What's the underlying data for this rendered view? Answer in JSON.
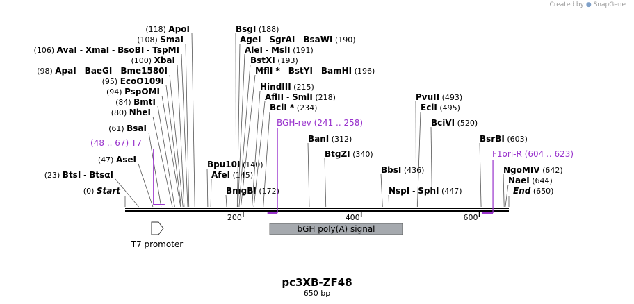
{
  "watermark": {
    "prefix": "Created by",
    "brand": "SnapGene"
  },
  "plasmid": {
    "name": "pc3XB-ZF48",
    "length_label": "650 bp",
    "length_bp": 650
  },
  "axis": {
    "start": 1,
    "end": 650,
    "ticks": [
      200,
      400,
      600
    ]
  },
  "sites": [
    {
      "pos": 0,
      "labels": [
        {
          "text": "(0)"
        },
        {
          "text": "Start",
          "style": "italic"
        }
      ]
    },
    {
      "pos": 23,
      "labels": [
        {
          "text": "(23)"
        },
        {
          "text": "BtsI",
          "style": "bold"
        },
        {
          "text": " - "
        },
        {
          "text": "BtsαI",
          "style": "bold"
        }
      ]
    },
    {
      "pos": 47,
      "labels": [
        {
          "text": "(47)"
        },
        {
          "text": "AseI",
          "style": "bold"
        }
      ]
    },
    {
      "pos": 61,
      "labels": [
        {
          "text": "(61)"
        },
        {
          "text": "BsaI",
          "style": "bold"
        }
      ]
    },
    {
      "pos": 80,
      "labels": [
        {
          "text": "(80)"
        },
        {
          "text": "NheI",
          "style": "bold"
        }
      ]
    },
    {
      "pos": 84,
      "labels": [
        {
          "text": "(84)"
        },
        {
          "text": "BmtI",
          "style": "bold"
        }
      ]
    },
    {
      "pos": 94,
      "labels": [
        {
          "text": "(94)"
        },
        {
          "text": "PspOMI",
          "style": "bold"
        }
      ]
    },
    {
      "pos": 95,
      "labels": [
        {
          "text": "(95)"
        },
        {
          "text": "EcoO109I",
          "style": "bold"
        }
      ]
    },
    {
      "pos": 98,
      "labels": [
        {
          "text": "(98)"
        },
        {
          "text": "ApaI",
          "style": "bold"
        },
        {
          "text": " - "
        },
        {
          "text": "BaeGI",
          "style": "bold"
        },
        {
          "text": " - "
        },
        {
          "text": "Bme1580I",
          "style": "bold"
        }
      ]
    },
    {
      "pos": 100,
      "labels": [
        {
          "text": "(100)"
        },
        {
          "text": "XbaI",
          "style": "bold"
        }
      ]
    },
    {
      "pos": 106,
      "labels": [
        {
          "text": "(106)"
        },
        {
          "text": "AvaI",
          "style": "bold"
        },
        {
          "text": " - "
        },
        {
          "text": "XmaI",
          "style": "bold"
        },
        {
          "text": " - "
        },
        {
          "text": "BsoBI",
          "style": "bold"
        },
        {
          "text": " - "
        },
        {
          "text": "TspMI",
          "style": "bold"
        }
      ]
    },
    {
      "pos": 108,
      "labels": [
        {
          "text": "(108)"
        },
        {
          "text": "SmaI",
          "style": "bold"
        }
      ]
    },
    {
      "pos": 118,
      "labels": [
        {
          "text": "(118)"
        },
        {
          "text": "ApoI",
          "style": "bold"
        }
      ]
    },
    {
      "pos": 140,
      "labels": [
        {
          "text": "Bpu10I",
          "style": "bold"
        },
        {
          "text": "(140)"
        }
      ]
    },
    {
      "pos": 145,
      "labels": [
        {
          "text": "AfeI",
          "style": "bold"
        },
        {
          "text": "(145)"
        }
      ]
    },
    {
      "pos": 172,
      "labels": [
        {
          "text": "BmgBI",
          "style": "bold"
        },
        {
          "text": "(172)"
        }
      ]
    },
    {
      "pos": 188,
      "labels": [
        {
          "text": "BsgI",
          "style": "bold"
        },
        {
          "text": "(188)"
        }
      ]
    },
    {
      "pos": 190,
      "labels": [
        {
          "text": "AgeI",
          "style": "bold"
        },
        {
          "text": " - "
        },
        {
          "text": "SgrAI",
          "style": "bold"
        },
        {
          "text": " - "
        },
        {
          "text": "BsaWI",
          "style": "bold"
        },
        {
          "text": "(190)"
        }
      ]
    },
    {
      "pos": 191,
      "labels": [
        {
          "text": "AleI",
          "style": "bold"
        },
        {
          "text": " - "
        },
        {
          "text": "MslI",
          "style": "bold"
        },
        {
          "text": "(191)"
        }
      ]
    },
    {
      "pos": 193,
      "labels": [
        {
          "text": "BstXI",
          "style": "bold"
        },
        {
          "text": "(193)"
        }
      ]
    },
    {
      "pos": 196,
      "labels": [
        {
          "text": "MflI *",
          "style": "bold"
        },
        {
          "text": " - "
        },
        {
          "text": "BstYI",
          "style": "bold"
        },
        {
          "text": " - "
        },
        {
          "text": "BamHI",
          "style": "bold"
        },
        {
          "text": "(196)"
        }
      ]
    },
    {
      "pos": 215,
      "labels": [
        {
          "text": "HindIII",
          "style": "bold"
        },
        {
          "text": "(215)"
        }
      ]
    },
    {
      "pos": 218,
      "labels": [
        {
          "text": "AflII",
          "style": "bold"
        },
        {
          "text": " - "
        },
        {
          "text": "SmlI",
          "style": "bold"
        },
        {
          "text": "(218)"
        }
      ]
    },
    {
      "pos": 234,
      "labels": [
        {
          "text": "BclI *",
          "style": "bold"
        },
        {
          "text": "(234)"
        }
      ]
    },
    {
      "pos": 312,
      "labels": [
        {
          "text": "BanI",
          "style": "bold"
        },
        {
          "text": "(312)"
        }
      ]
    },
    {
      "pos": 340,
      "labels": [
        {
          "text": "BtgZI",
          "style": "bold"
        },
        {
          "text": "(340)"
        }
      ]
    },
    {
      "pos": 436,
      "labels": [
        {
          "text": "BbsI",
          "style": "bold"
        },
        {
          "text": "(436)"
        }
      ]
    },
    {
      "pos": 447,
      "labels": [
        {
          "text": "NspI",
          "style": "bold"
        },
        {
          "text": " - "
        },
        {
          "text": "SphI",
          "style": "bold"
        },
        {
          "text": "(447)"
        }
      ]
    },
    {
      "pos": 493,
      "labels": [
        {
          "text": "PvuII",
          "style": "bold"
        },
        {
          "text": "(493)"
        }
      ]
    },
    {
      "pos": 495,
      "labels": [
        {
          "text": "EciI",
          "style": "bold"
        },
        {
          "text": "(495)"
        }
      ]
    },
    {
      "pos": 520,
      "labels": [
        {
          "text": "BciVI",
          "style": "bold"
        },
        {
          "text": "(520)"
        }
      ]
    },
    {
      "pos": 603,
      "labels": [
        {
          "text": "BsrBI",
          "style": "bold"
        },
        {
          "text": "(603)"
        }
      ]
    },
    {
      "pos": 642,
      "labels": [
        {
          "text": "NgoMIV",
          "style": "bold"
        },
        {
          "text": "(642)"
        }
      ]
    },
    {
      "pos": 644,
      "labels": [
        {
          "text": "NaeI",
          "style": "bold"
        },
        {
          "text": "(644)"
        }
      ]
    },
    {
      "pos": 650,
      "labels": [
        {
          "text": "End",
          "style": "italic"
        },
        {
          "text": "(650)"
        }
      ]
    }
  ],
  "primers": [
    {
      "name": "T7",
      "range": "(48 .. 67)",
      "start": 48,
      "end": 67,
      "strand": "forward"
    },
    {
      "name": "BGH-rev",
      "range": "(241 .. 258)",
      "start": 241,
      "end": 258,
      "strand": "reverse"
    },
    {
      "name": "F1ori-R",
      "range": "(604 .. 623)",
      "start": 604,
      "end": 623,
      "strand": "reverse"
    }
  ],
  "features": [
    {
      "name": "T7 promoter",
      "start": 48,
      "end": 66,
      "type": "promoter"
    },
    {
      "name": "bGH poly(A) signal",
      "start": 241,
      "end": 465,
      "type": "polyA_signal"
    }
  ],
  "colors": {
    "primer": "#9933cc",
    "feature_fill": "#a5a9ae",
    "line": "#000000",
    "site_line": "#555555"
  }
}
